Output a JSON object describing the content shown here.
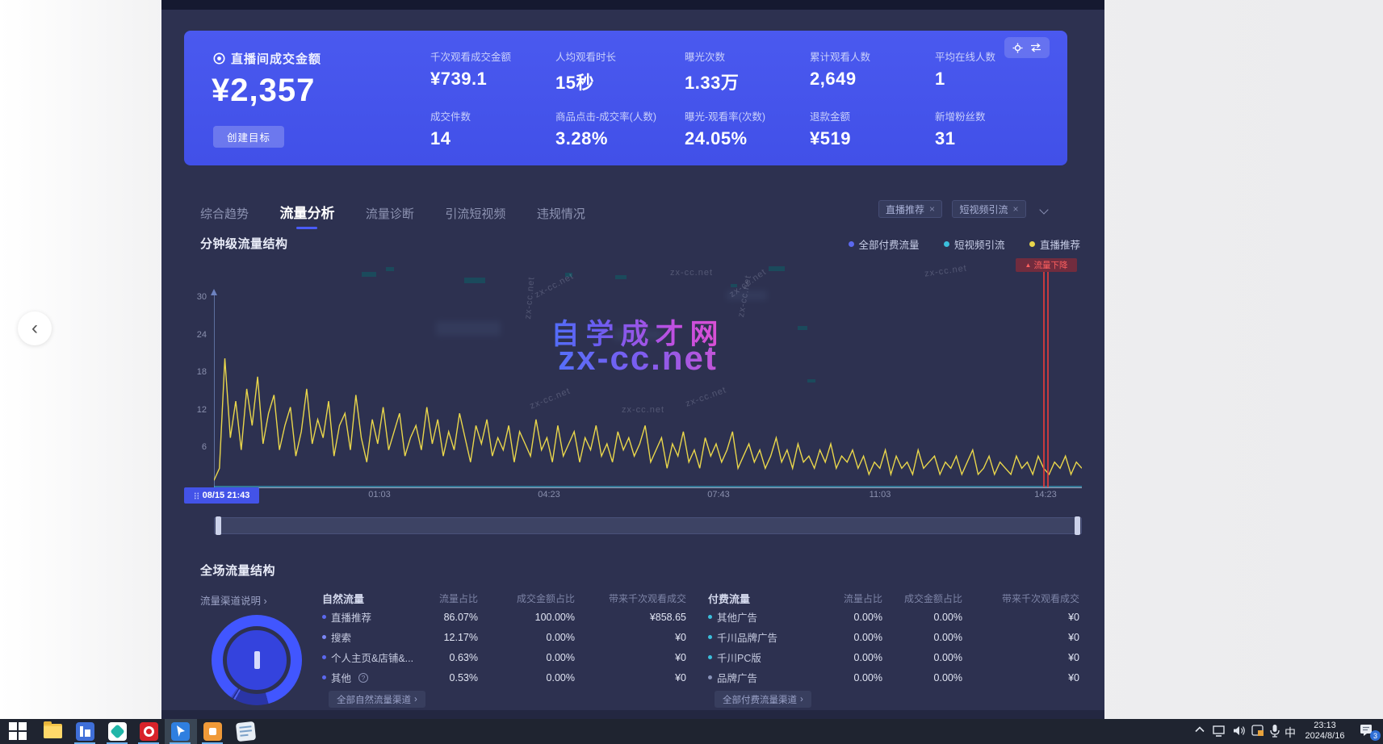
{
  "page": {
    "back_glyph": "‹"
  },
  "kpi": {
    "primary_label": "直播间成交金额",
    "primary_value": "¥2,357",
    "goal_button": "创建目标",
    "metrics": [
      {
        "label": "千次观看成交金额",
        "value": "¥739.1"
      },
      {
        "label": "人均观看时长",
        "value": "15秒"
      },
      {
        "label": "曝光次数",
        "value": "1.33万"
      },
      {
        "label": "累计观看人数",
        "value": "2,649"
      },
      {
        "label": "平均在线人数",
        "value": "1"
      },
      {
        "label": "成交件数",
        "value": "14"
      },
      {
        "label": "商品点击-成交率(人数)",
        "value": "3.28%"
      },
      {
        "label": "曝光-观看率(次数)",
        "value": "24.05%"
      },
      {
        "label": "退款金额",
        "value": "¥519"
      },
      {
        "label": "新增粉丝数",
        "value": "31"
      }
    ]
  },
  "tabs": [
    {
      "label": "综合趋势",
      "active": false
    },
    {
      "label": "流量分析",
      "active": true
    },
    {
      "label": "流量诊断",
      "active": false
    },
    {
      "label": "引流短视频",
      "active": false
    },
    {
      "label": "违规情况",
      "active": false
    }
  ],
  "filters": {
    "tags": [
      "直播推荐",
      "短视频引流"
    ],
    "close_glyph": "×"
  },
  "chart": {
    "title": "分钟级流量结构",
    "legend": [
      {
        "label": "全部付费流量",
        "color": "#5b68ee"
      },
      {
        "label": "短视频引流",
        "color": "#3bbfdc"
      },
      {
        "label": "直播推荐",
        "color": "#e9d64b"
      }
    ],
    "alert_label": "流量下降",
    "alert_glyph": "▲",
    "selected_time": "08/15 21:43",
    "y_ticks": [
      "30",
      "24",
      "18",
      "12",
      "6"
    ],
    "x_labels": [
      "01:03",
      "04:23",
      "07:43",
      "11:03",
      "14:23"
    ],
    "watermark_title": "自学成才网",
    "watermark_site": "zx-cc.net"
  },
  "chart_data": {
    "type": "line",
    "title": "分钟级流量结构",
    "x_start": "08/15 21:43",
    "x_ticks": [
      "01:03",
      "04:23",
      "07:43",
      "11:03",
      "14:23"
    ],
    "ylim": [
      0,
      30
    ],
    "y_ticks": [
      30,
      24,
      18,
      12,
      6
    ],
    "legend_position": "top-right",
    "grid": false,
    "annotation": {
      "label": "流量下降",
      "x_fraction": 0.956
    },
    "series": [
      {
        "name": "直播推荐",
        "color": "#e9d64b",
        "values": [
          1,
          3,
          21,
          8,
          14,
          6,
          16,
          10,
          18,
          7,
          12,
          15,
          6,
          10,
          13,
          5,
          9,
          16,
          7,
          11,
          8,
          14,
          5,
          10,
          12,
          6,
          15,
          8,
          4,
          11,
          7,
          13,
          6,
          9,
          12,
          5,
          8,
          10,
          6,
          13,
          7,
          11,
          5,
          9,
          6,
          12,
          8,
          4,
          10,
          7,
          11,
          5,
          8,
          6,
          10,
          4,
          9,
          7,
          5,
          11,
          6,
          8,
          4,
          10,
          5,
          7,
          9,
          4,
          8,
          6,
          10,
          5,
          7,
          4,
          9,
          6,
          8,
          5,
          7,
          10,
          4,
          6,
          8,
          3,
          7,
          5,
          9,
          4,
          6,
          3,
          8,
          5,
          7,
          4,
          6,
          9,
          3,
          5,
          7,
          4,
          6,
          3,
          5,
          8,
          4,
          6,
          3,
          7,
          4,
          5,
          3,
          6,
          4,
          7,
          3,
          5,
          4,
          6,
          3,
          5,
          2,
          4,
          3,
          6,
          2,
          5,
          3,
          4,
          2,
          6,
          3,
          4,
          5,
          2,
          4,
          3,
          5,
          2,
          4,
          6,
          2,
          3,
          5,
          2,
          4,
          3,
          2,
          5,
          3,
          4,
          2,
          5,
          3,
          2,
          4,
          3,
          5,
          2,
          4,
          3
        ]
      },
      {
        "name": "短视频引流",
        "color": "#3bbfdc",
        "constant_value": 0
      },
      {
        "name": "全部付费流量",
        "color": "#5b68ee",
        "constant_value": 0
      }
    ]
  },
  "traffic": {
    "title": "全场流量结构",
    "channel_help": "流量渠道说明",
    "columns": [
      "流量占比",
      "成交金额占比",
      "带来千次观看成交"
    ],
    "natural": {
      "header": "自然流量",
      "rows": [
        {
          "name": "直播推荐",
          "traffic": "86.07%",
          "gmv": "100.00%",
          "per_mille": "¥858.65"
        },
        {
          "name": "搜索",
          "traffic": "12.17%",
          "gmv": "0.00%",
          "per_mille": "¥0"
        },
        {
          "name": "个人主页&店铺&...",
          "traffic": "0.63%",
          "gmv": "0.00%",
          "per_mille": "¥0"
        },
        {
          "name": "其他",
          "traffic": "0.53%",
          "gmv": "0.00%",
          "per_mille": "¥0"
        }
      ],
      "more": "全部自然流量渠道"
    },
    "paid": {
      "header": "付费流量",
      "rows": [
        {
          "name": "其他广告",
          "traffic": "0.00%",
          "gmv": "0.00%",
          "per_mille": "¥0"
        },
        {
          "name": "千川品牌广告",
          "traffic": "0.00%",
          "gmv": "0.00%",
          "per_mille": "¥0"
        },
        {
          "name": "千川PC版",
          "traffic": "0.00%",
          "gmv": "0.00%",
          "per_mille": "¥0"
        },
        {
          "name": "品牌广告",
          "traffic": "0.00%",
          "gmv": "0.00%",
          "per_mille": "¥0"
        }
      ],
      "more": "全部付费流量渠道"
    },
    "donut": {
      "ring_color": "#4156ff",
      "segments": [
        {
          "label": "直播推荐",
          "value": 86.07
        },
        {
          "label": "搜索",
          "value": 12.17
        },
        {
          "label": "个人主页&店铺&...",
          "value": 0.63
        },
        {
          "label": "其他",
          "value": 0.53
        },
        {
          "label": "付费流量",
          "value": 0.6
        }
      ]
    }
  },
  "taskbar": {
    "time": "23:13",
    "date": "2024/8/16",
    "ime_indicator": "中",
    "notification_count": "3",
    "app_icons": [
      "windows-start",
      "file-explorer",
      "app-l1",
      "app-teal",
      "app-red-o",
      "app-pointer",
      "app-orange",
      "notepad"
    ]
  }
}
